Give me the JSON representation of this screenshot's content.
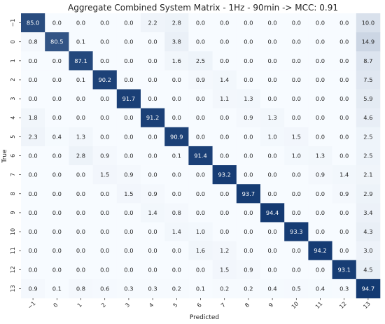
{
  "chart_data": {
    "type": "heatmap",
    "title": "Aggregate Combined System Matrix - 1Hz - 90min -> MCC: 0.91",
    "xlabel": "Predicted",
    "ylabel": "True",
    "x_labels": [
      "−1",
      "0",
      "1",
      "2",
      "3",
      "4",
      "5",
      "6",
      "7",
      "8",
      "9",
      "10",
      "11",
      "12",
      "13"
    ],
    "y_labels": [
      "−1",
      "0",
      "1",
      "2",
      "3",
      "4",
      "5",
      "6",
      "7",
      "8",
      "9",
      "10",
      "11",
      "12",
      "13"
    ],
    "values": [
      [
        85.0,
        0.0,
        0.0,
        0.0,
        0.0,
        2.2,
        2.8,
        0.0,
        0.0,
        0.0,
        0.0,
        0.0,
        0.0,
        0.0,
        10.0
      ],
      [
        0.8,
        80.5,
        0.1,
        0.0,
        0.0,
        0.0,
        3.8,
        0.0,
        0.0,
        0.0,
        0.0,
        0.0,
        0.0,
        0.0,
        14.9
      ],
      [
        0.0,
        0.0,
        87.1,
        0.0,
        0.0,
        0.0,
        1.6,
        2.5,
        0.0,
        0.0,
        0.0,
        0.0,
        0.0,
        0.0,
        8.7
      ],
      [
        0.0,
        0.0,
        0.1,
        90.2,
        0.0,
        0.0,
        0.0,
        0.9,
        1.4,
        0.0,
        0.0,
        0.0,
        0.0,
        0.0,
        7.5
      ],
      [
        0.0,
        0.0,
        0.0,
        0.0,
        91.7,
        0.0,
        0.0,
        0.0,
        1.1,
        1.3,
        0.0,
        0.0,
        0.0,
        0.0,
        5.9
      ],
      [
        1.8,
        0.0,
        0.0,
        0.0,
        0.0,
        91.2,
        0.0,
        0.0,
        0.0,
        0.9,
        1.3,
        0.0,
        0.0,
        0.0,
        4.6
      ],
      [
        2.3,
        0.4,
        1.3,
        0.0,
        0.0,
        0.0,
        90.9,
        0.0,
        0.0,
        0.0,
        1.0,
        1.5,
        0.0,
        0.0,
        2.5
      ],
      [
        0.0,
        0.0,
        2.8,
        0.9,
        0.0,
        0.0,
        0.1,
        91.4,
        0.0,
        0.0,
        0.0,
        1.0,
        1.3,
        0.0,
        2.5
      ],
      [
        0.0,
        0.0,
        0.0,
        1.5,
        0.9,
        0.0,
        0.0,
        0.0,
        93.2,
        0.0,
        0.0,
        0.0,
        0.9,
        1.4,
        2.1
      ],
      [
        0.0,
        0.0,
        0.0,
        0.0,
        1.5,
        0.9,
        0.0,
        0.0,
        0.0,
        93.7,
        0.0,
        0.0,
        0.0,
        0.9,
        2.9
      ],
      [
        0.0,
        0.0,
        0.0,
        0.0,
        0.0,
        1.4,
        0.8,
        0.0,
        0.0,
        0.0,
        94.4,
        0.0,
        0.0,
        0.0,
        3.4
      ],
      [
        0.0,
        0.0,
        0.0,
        0.0,
        0.0,
        0.0,
        1.4,
        1.0,
        0.0,
        0.0,
        0.0,
        93.3,
        0.0,
        0.0,
        4.3
      ],
      [
        0.0,
        0.0,
        0.0,
        0.0,
        0.0,
        0.0,
        0.0,
        1.6,
        1.2,
        0.0,
        0.0,
        0.0,
        94.2,
        0.0,
        3.0
      ],
      [
        0.0,
        0.0,
        0.0,
        0.0,
        0.0,
        0.0,
        0.0,
        0.0,
        1.5,
        0.9,
        0.0,
        0.0,
        0.0,
        93.1,
        4.5
      ],
      [
        0.9,
        0.1,
        0.8,
        0.6,
        0.3,
        0.3,
        0.2,
        0.1,
        0.2,
        0.2,
        0.4,
        0.5,
        0.4,
        0.3,
        94.7
      ]
    ],
    "value_range": [
      0,
      100
    ],
    "colormap": {
      "low": "#f7fbff",
      "high": "#08306b"
    },
    "colorbar": false,
    "grid": false
  }
}
